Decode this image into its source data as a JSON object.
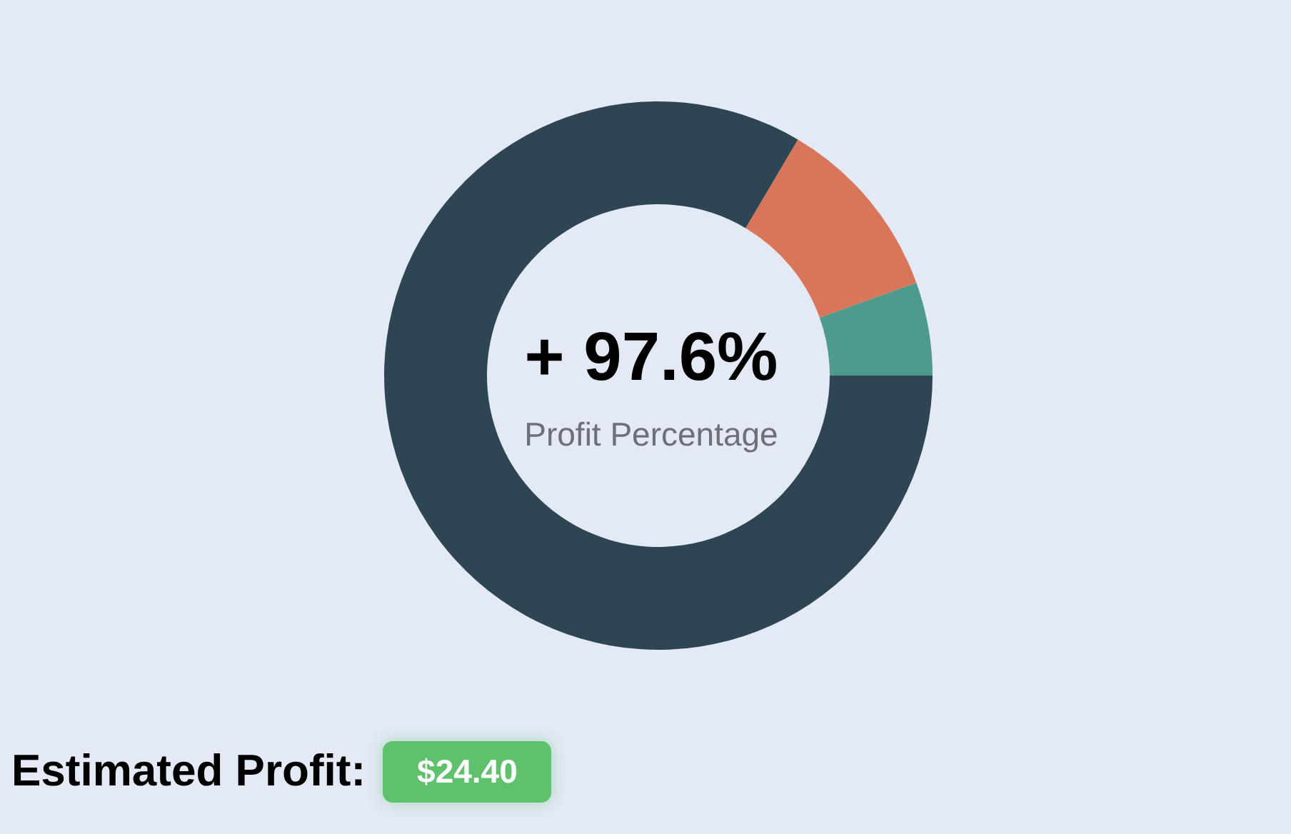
{
  "chart_data": {
    "type": "donut",
    "categories": [
      null,
      null,
      null
    ],
    "values": [
      5.5,
      11.0,
      83.5
    ],
    "colors": [
      "#4e9b8e",
      "#d9765a",
      "#2e4653"
    ],
    "annotations": [
      "+ 97.6%",
      "Profit Percentage",
      "Estimated Profit:",
      "$24.40"
    ]
  }
}
